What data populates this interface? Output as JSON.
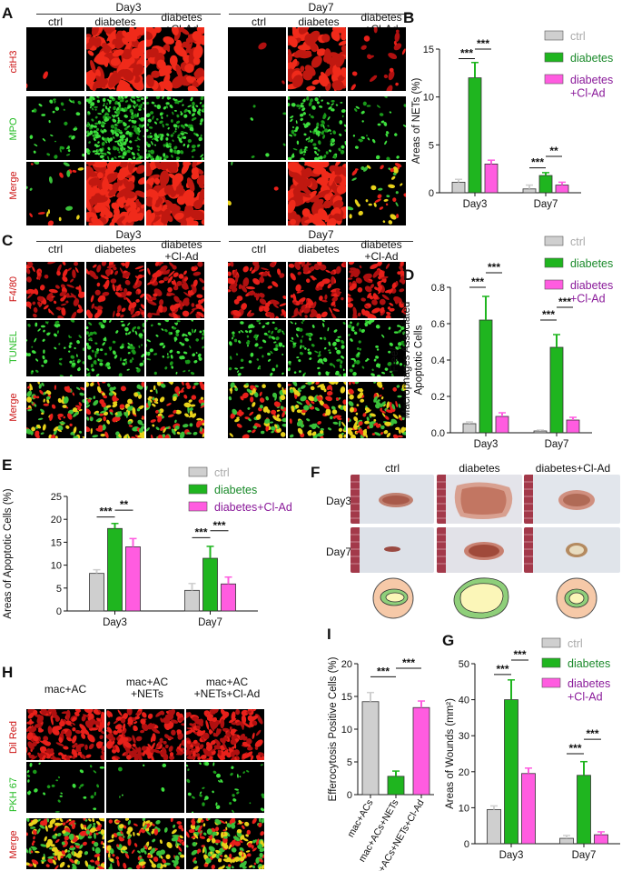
{
  "panels": {
    "A": {
      "label": "A",
      "day3": "Day3",
      "day7": "Day7",
      "cols": [
        "ctrl",
        "diabetes",
        "diabetes\n+Cl-Ad"
      ],
      "rows": [
        "citH3",
        "MPO",
        "Merge"
      ]
    },
    "C": {
      "label": "C",
      "day3": "Day3",
      "day7": "Day7",
      "cols": [
        "ctrl",
        "diabetes",
        "diabetes\n+Cl-Ad"
      ],
      "rows": [
        "F4/80",
        "TUNEL",
        "Merge"
      ]
    },
    "F": {
      "label": "F",
      "cols": [
        "ctrl",
        "diabetes",
        "diabetes+Cl-Ad"
      ],
      "rows": [
        "Day3",
        "Day7"
      ]
    },
    "H": {
      "label": "H",
      "cols": [
        "mac+AC",
        "mac+AC\n+NETs",
        "mac+AC\n+NETs+Cl-Ad"
      ],
      "rows": [
        "Dil Red",
        "PKH 67",
        "Merge"
      ]
    }
  },
  "colors": {
    "ctrl": "#cfcfcf",
    "diabetes": "#1fb51f",
    "cl_ad": "#ff5ce0",
    "ctrl_text": "#aaaaaa",
    "diabetes_text": "#1a8a2a",
    "cl_ad_text": "#8a1a9a",
    "red_label": "#cc1111",
    "green_label": "#22bb22"
  },
  "chart_data": [
    {
      "panel": "B",
      "type": "bar",
      "ylabel": "Areas of NETs (%)",
      "categories": [
        "Day3",
        "Day7"
      ],
      "ylim": [
        0,
        15
      ],
      "yticks": [
        0,
        5,
        10,
        15
      ],
      "legend": [
        "ctrl",
        "diabetes",
        "diabetes\n+Cl-Ad"
      ],
      "series": [
        {
          "name": "ctrl",
          "values": [
            1.1,
            0.4
          ],
          "err": [
            0.3,
            0.4
          ]
        },
        {
          "name": "diabetes",
          "values": [
            12.0,
            1.8
          ],
          "err": [
            1.6,
            0.3
          ]
        },
        {
          "name": "diabetes\n+Cl-Ad",
          "values": [
            3.0,
            0.8
          ],
          "err": [
            0.4,
            0.3
          ]
        }
      ],
      "sig": [
        {
          "cat": 0,
          "a": 0,
          "b": 1,
          "y": 14.0,
          "text": "***"
        },
        {
          "cat": 0,
          "a": 1,
          "b": 2,
          "y": 15.0,
          "text": "***"
        },
        {
          "cat": 1,
          "a": 0,
          "b": 1,
          "y": 2.6,
          "text": "***"
        },
        {
          "cat": 1,
          "a": 1,
          "b": 2,
          "y": 3.8,
          "text": "**"
        }
      ]
    },
    {
      "panel": "D",
      "type": "bar",
      "ylabel": "Free/\nMacrophages Associated\nApoptotic Cells",
      "categories": [
        "Day3",
        "Day7"
      ],
      "ylim": [
        0,
        0.8
      ],
      "yticks": [
        0.0,
        0.2,
        0.4,
        0.6,
        0.8
      ],
      "legend": [
        "ctrl",
        "diabetes",
        "diabetes\n+Cl-Ad"
      ],
      "series": [
        {
          "name": "ctrl",
          "values": [
            0.05,
            0.01
          ],
          "err": [
            0.01,
            0.005
          ]
        },
        {
          "name": "diabetes",
          "values": [
            0.62,
            0.47
          ],
          "err": [
            0.13,
            0.07
          ]
        },
        {
          "name": "diabetes\n+Cl-Ad",
          "values": [
            0.09,
            0.07
          ],
          "err": [
            0.02,
            0.015
          ]
        }
      ],
      "sig": [
        {
          "cat": 0,
          "a": 0,
          "b": 1,
          "y": 0.8,
          "text": "***"
        },
        {
          "cat": 0,
          "a": 1,
          "b": 2,
          "y": 0.88,
          "text": "***"
        },
        {
          "cat": 1,
          "a": 0,
          "b": 1,
          "y": 0.62,
          "text": "***"
        },
        {
          "cat": 1,
          "a": 1,
          "b": 2,
          "y": 0.69,
          "text": "***"
        }
      ]
    },
    {
      "panel": "E",
      "type": "bar",
      "ylabel": "Areas of Apoptotic Cells (%)",
      "categories": [
        "Day3",
        "Day7"
      ],
      "ylim": [
        0,
        25
      ],
      "yticks": [
        0,
        5,
        10,
        15,
        20,
        25
      ],
      "legend": [
        "ctrl",
        "diabetes",
        "diabetes+Cl-Ad"
      ],
      "series": [
        {
          "name": "ctrl",
          "values": [
            8.2,
            4.5
          ],
          "err": [
            0.8,
            1.5
          ]
        },
        {
          "name": "diabetes",
          "values": [
            18.0,
            11.5
          ],
          "err": [
            1.1,
            2.6
          ]
        },
        {
          "name": "diabetes+Cl-Ad",
          "values": [
            14.0,
            5.9
          ],
          "err": [
            1.8,
            1.5
          ]
        }
      ],
      "sig": [
        {
          "cat": 0,
          "a": 0,
          "b": 1,
          "y": 20.5,
          "text": "***"
        },
        {
          "cat": 0,
          "a": 1,
          "b": 2,
          "y": 22.0,
          "text": "**"
        },
        {
          "cat": 1,
          "a": 0,
          "b": 1,
          "y": 16.0,
          "text": "***"
        },
        {
          "cat": 1,
          "a": 1,
          "b": 2,
          "y": 17.5,
          "text": "***"
        }
      ]
    },
    {
      "panel": "G",
      "type": "bar",
      "ylabel": "Areas of Wounds (mm²)",
      "categories": [
        "Day3",
        "Day7"
      ],
      "ylim": [
        0,
        50
      ],
      "yticks": [
        0,
        10,
        20,
        30,
        40,
        50
      ],
      "legend": [
        "ctrl",
        "diabetes",
        "diabetes\n+Cl-Ad"
      ],
      "series": [
        {
          "name": "ctrl",
          "values": [
            9.5,
            1.5
          ],
          "err": [
            1.0,
            0.8
          ]
        },
        {
          "name": "diabetes",
          "values": [
            40.0,
            19.0
          ],
          "err": [
            5.5,
            3.8
          ]
        },
        {
          "name": "diabetes\n+Cl-Ad",
          "values": [
            19.5,
            2.5
          ],
          "err": [
            1.5,
            0.8
          ]
        }
      ],
      "sig": [
        {
          "cat": 0,
          "a": 0,
          "b": 1,
          "y": 47.0,
          "text": "***"
        },
        {
          "cat": 0,
          "a": 1,
          "b": 2,
          "y": 51.0,
          "text": "***"
        },
        {
          "cat": 1,
          "a": 0,
          "b": 1,
          "y": 25.0,
          "text": "***"
        },
        {
          "cat": 1,
          "a": 1,
          "b": 2,
          "y": 29.0,
          "text": "***"
        }
      ]
    },
    {
      "panel": "I",
      "type": "bar",
      "ylabel": "Efferocytosis Positive Cells (%)",
      "categories": [
        "mac+ACs",
        "mac+ACs+NETs",
        "mac+ACs+NETs+Cl-Ad"
      ],
      "ylim": [
        0,
        20
      ],
      "yticks": [
        0,
        5,
        10,
        15,
        20
      ],
      "series": [
        {
          "name": "",
          "values": [
            14.2,
            2.8,
            13.3
          ],
          "err": [
            1.4,
            0.8,
            1.0
          ]
        }
      ],
      "sig": [
        {
          "a": 0,
          "b": 1,
          "y": 18.0,
          "text": "***"
        },
        {
          "a": 1,
          "b": 2,
          "y": 19.3,
          "text": "***"
        }
      ]
    }
  ]
}
